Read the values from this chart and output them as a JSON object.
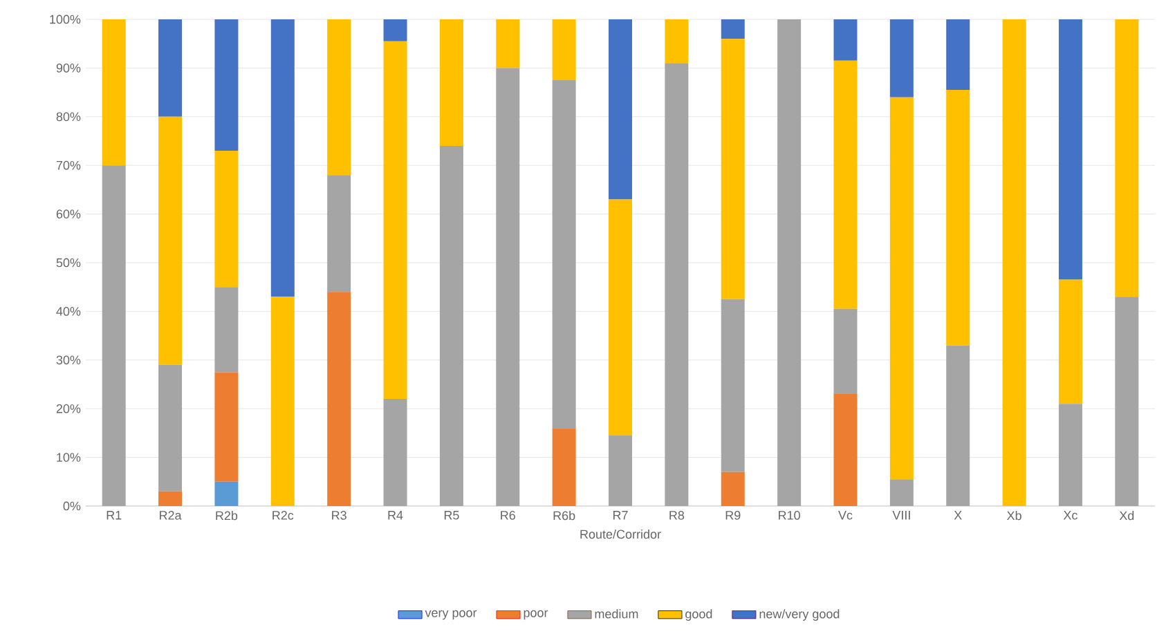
{
  "chart_data": {
    "type": "bar",
    "stacked": true,
    "xlabel": "Route/Corridor",
    "categories": [
      "R1",
      "R2a",
      "R2b",
      "R2c",
      "R3",
      "R4",
      "R5",
      "R6",
      "R6b",
      "R7",
      "R8",
      "R9",
      "R10",
      "Vc",
      "VIII",
      "X",
      "Xb",
      "Xc",
      "Xd"
    ],
    "series": [
      {
        "name": "very poor",
        "color": "#5b9bd5",
        "values": [
          0,
          0,
          5,
          0,
          0,
          0,
          0,
          0,
          0,
          0,
          0,
          0,
          0,
          0,
          0,
          0,
          0,
          0,
          0
        ]
      },
      {
        "name": "poor",
        "color": "#ed7d31",
        "values": [
          0,
          3,
          22.5,
          0,
          44,
          0,
          0,
          0,
          16,
          0,
          0,
          7,
          0,
          23,
          0,
          0,
          0,
          0,
          0
        ]
      },
      {
        "name": "medium",
        "color": "#a5a5a5",
        "values": [
          70,
          26,
          17.5,
          0,
          24,
          22,
          74,
          90,
          71.5,
          14.5,
          91,
          35.5,
          100,
          17.5,
          5.5,
          33,
          0,
          21,
          43
        ]
      },
      {
        "name": "good",
        "color": "#ffc000",
        "values": [
          30,
          51,
          28,
          43,
          32,
          73.5,
          26,
          10,
          12.5,
          48.5,
          9,
          53.5,
          0,
          51,
          78.5,
          52.5,
          100,
          25.5,
          57
        ]
      },
      {
        "name": "new/very good",
        "color": "#4472c4",
        "values": [
          0,
          20,
          27,
          57,
          0,
          4.5,
          0,
          0,
          0,
          37,
          0,
          4,
          0,
          8.5,
          16,
          14.5,
          0,
          53.5,
          0
        ]
      }
    ],
    "ylim": [
      0,
      100
    ],
    "yticks": [
      {
        "value": 0,
        "label": "0%"
      },
      {
        "value": 10,
        "label": "10%"
      },
      {
        "value": 20,
        "label": "20%"
      },
      {
        "value": 30,
        "label": "30%"
      },
      {
        "value": 40,
        "label": "40%"
      },
      {
        "value": 50,
        "label": "50%"
      },
      {
        "value": 60,
        "label": "60%"
      },
      {
        "value": 70,
        "label": "70%"
      },
      {
        "value": 80,
        "label": "80%"
      },
      {
        "value": 90,
        "label": "90%"
      },
      {
        "value": 100,
        "label": "100%"
      }
    ],
    "grid": "y",
    "legend": "bottom"
  }
}
